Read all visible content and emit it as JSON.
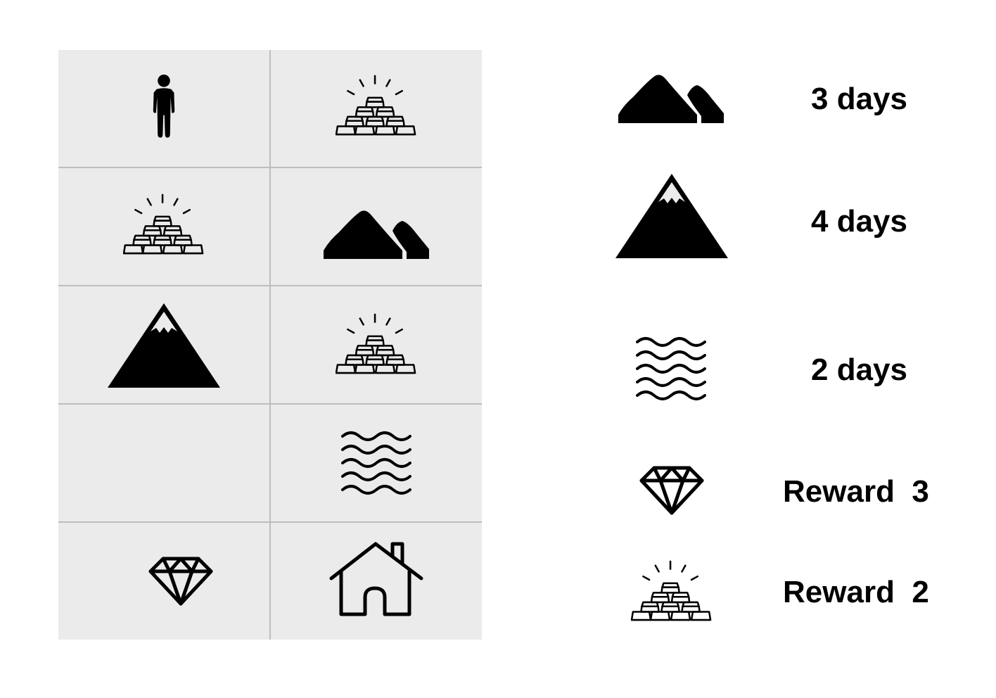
{
  "board": {
    "rows": [
      [
        "person-icon",
        "gold-bars-icon"
      ],
      [
        "gold-bars-icon",
        "hills-icon"
      ],
      [
        "mountain-icon",
        "gold-bars-icon"
      ],
      [
        "",
        "water-icon"
      ],
      [
        "diamond-icon",
        "house-icon"
      ]
    ]
  },
  "legend": [
    {
      "icon": "hills-icon",
      "label": "3 days"
    },
    {
      "icon": "mountain-icon",
      "label": "4 days"
    },
    {
      "icon": "water-icon",
      "label": "2 days"
    },
    {
      "icon": "diamond-icon",
      "label": "Reward  3"
    },
    {
      "icon": "gold-bars-icon",
      "label": "Reward  2"
    }
  ],
  "colors": {
    "cell_background": "#ebebeb",
    "grid_line": "#bdbdbd",
    "icon": "#000000"
  }
}
